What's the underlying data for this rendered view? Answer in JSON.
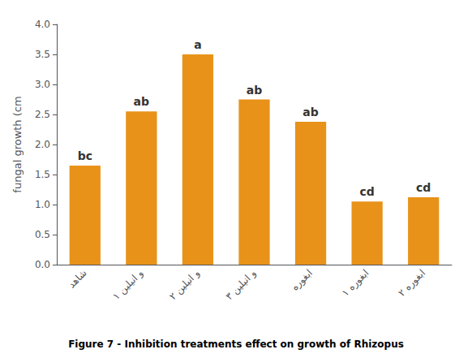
{
  "chart_data": {
    "type": "bar",
    "title": "Figure 7 - Inhibition treatments effect on growth of Rhizopus",
    "categories": [
      "شاهد",
      "و انيلين ١",
      "و انيلين ٢",
      "و انيلين ٣",
      "ابغوره",
      "ابغوره ١",
      "ابغوره ٢"
    ],
    "values": [
      1.65,
      2.55,
      3.5,
      2.75,
      2.38,
      1.05,
      1.12
    ],
    "annotations": [
      "bc",
      "ab",
      "a",
      "ab",
      "ab",
      "cd",
      "cd"
    ],
    "color": "#E8921A",
    "ylabel": "fungal growth (cm",
    "ylim": [
      0,
      4
    ],
    "yticks": [
      {
        "value": 0,
        "label": "0.0"
      },
      0.5,
      {
        "value": 1,
        "label": "1.0"
      },
      1.5,
      {
        "value": 2,
        "label": "2.0"
      },
      2.5,
      {
        "value": 3,
        "label": "3.0"
      },
      3.5,
      {
        "value": 4,
        "label": "4.0"
      }
    ],
    "grid": false
  }
}
